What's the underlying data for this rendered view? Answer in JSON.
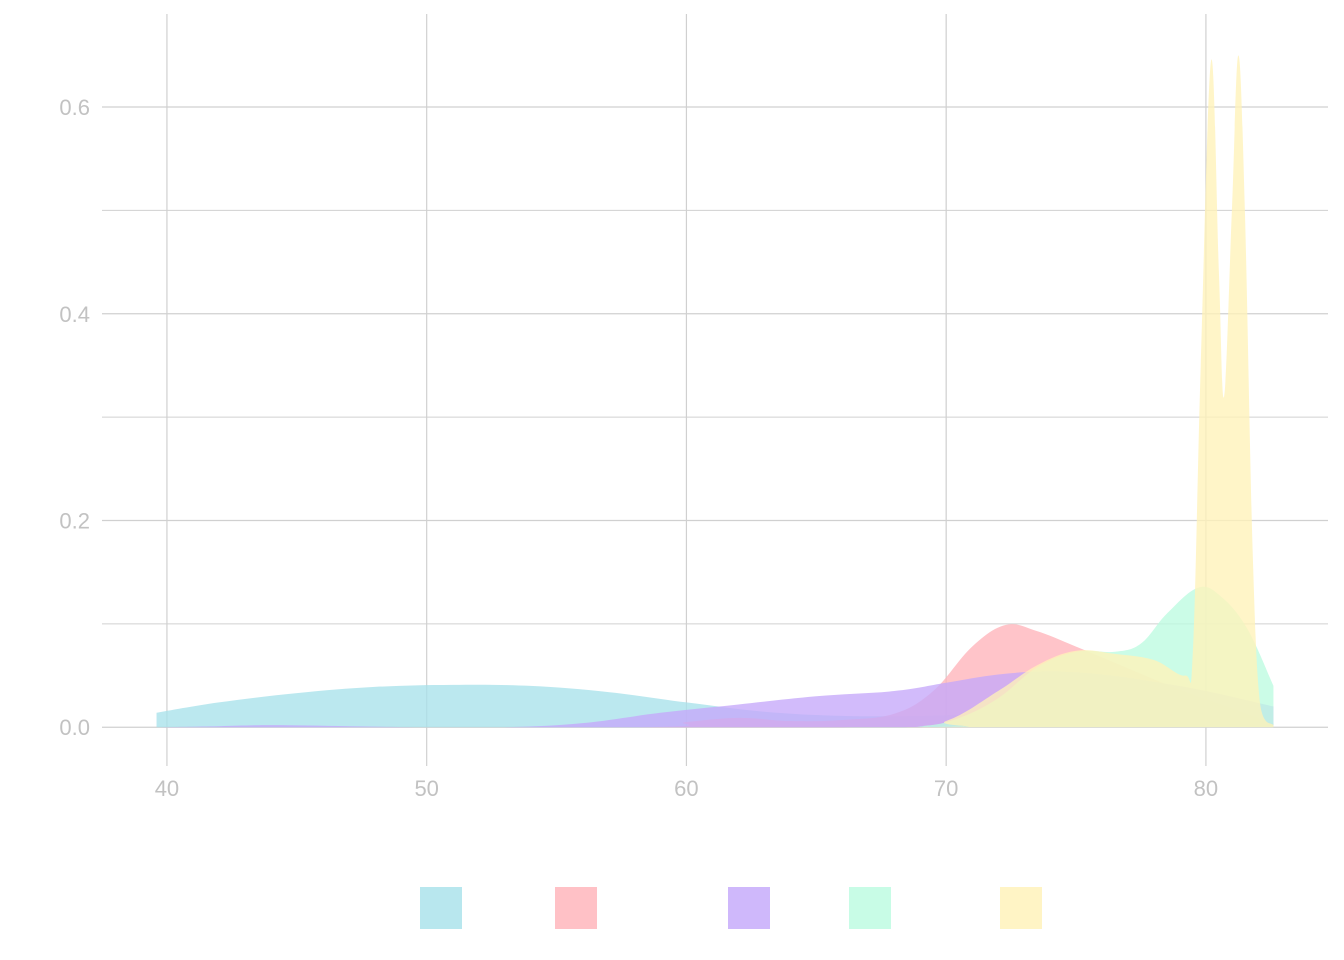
{
  "chart_data": {
    "type": "area",
    "subtype": "density",
    "title": "",
    "xlabel": "",
    "ylabel": "",
    "xlim": [
      37.5,
      84.7
    ],
    "ylim": [
      -0.0375,
      0.69
    ],
    "x_ticks": [
      40,
      50,
      60,
      70,
      80
    ],
    "x_tick_labels": [
      "40",
      "50",
      "60",
      "70",
      "80"
    ],
    "y_ticks": [
      0.0,
      0.2,
      0.4,
      0.6
    ],
    "y_tick_labels": [
      "0.0",
      "0.2",
      "0.4",
      "0.6"
    ],
    "y_minor_ticks": [
      0.1,
      0.3,
      0.5
    ],
    "grid": true,
    "legend": {
      "position": "bottom",
      "labels_visible": false
    },
    "series": [
      {
        "color": "#a8e2ea",
        "points": [
          [
            39.6,
            0.014
          ],
          [
            42,
            0.024
          ],
          [
            45,
            0.033
          ],
          [
            48,
            0.039
          ],
          [
            51,
            0.041
          ],
          [
            54,
            0.04
          ],
          [
            57,
            0.034
          ],
          [
            60,
            0.024
          ],
          [
            63,
            0.015
          ],
          [
            66,
            0.011
          ],
          [
            69,
            0.011
          ],
          [
            72,
            0.013
          ],
          [
            75,
            0.012
          ],
          [
            78,
            0.009
          ],
          [
            80,
            0.006
          ],
          [
            82,
            0.004
          ],
          [
            82.6,
            0.004
          ]
        ]
      },
      {
        "color": "#ffb3ba",
        "points": [
          [
            39.6,
            0.0
          ],
          [
            58,
            0.0
          ],
          [
            60,
            0.005
          ],
          [
            62,
            0.009
          ],
          [
            64,
            0.006
          ],
          [
            66,
            0.007
          ],
          [
            68,
            0.013
          ],
          [
            69.5,
            0.035
          ],
          [
            71,
            0.078
          ],
          [
            72.3,
            0.099
          ],
          [
            73.5,
            0.093
          ],
          [
            75,
            0.078
          ],
          [
            77,
            0.057
          ],
          [
            79,
            0.036
          ],
          [
            81,
            0.018
          ],
          [
            82.6,
            0.003
          ]
        ]
      },
      {
        "color": "#c5a8fa",
        "points": [
          [
            39.6,
            0.0
          ],
          [
            42,
            0.001
          ],
          [
            44,
            0.002
          ],
          [
            47,
            0.001
          ],
          [
            50,
            0.0
          ],
          [
            53,
            0.0
          ],
          [
            56,
            0.004
          ],
          [
            59,
            0.014
          ],
          [
            62,
            0.022
          ],
          [
            65,
            0.03
          ],
          [
            68,
            0.035
          ],
          [
            70,
            0.043
          ],
          [
            72,
            0.051
          ],
          [
            74,
            0.054
          ],
          [
            76,
            0.051
          ],
          [
            78,
            0.044
          ],
          [
            80,
            0.035
          ],
          [
            82.6,
            0.02
          ]
        ]
      },
      {
        "color": "#bcfbe0",
        "points": [
          [
            39.6,
            0.0
          ],
          [
            66,
            0.0
          ],
          [
            69,
            0.001
          ],
          [
            70.5,
            0.009
          ],
          [
            72,
            0.028
          ],
          [
            73.5,
            0.058
          ],
          [
            75,
            0.073
          ],
          [
            76.5,
            0.073
          ],
          [
            77.5,
            0.081
          ],
          [
            78.5,
            0.11
          ],
          [
            79.7,
            0.135
          ],
          [
            80.6,
            0.126
          ],
          [
            81.6,
            0.095
          ],
          [
            82.6,
            0.04
          ]
        ]
      },
      {
        "color": "#fff2b8",
        "points": [
          [
            39.6,
            0.0
          ],
          [
            68,
            0.0
          ],
          [
            70,
            0.006
          ],
          [
            72,
            0.035
          ],
          [
            73.5,
            0.06
          ],
          [
            75,
            0.074
          ],
          [
            76.5,
            0.071
          ],
          [
            78,
            0.065
          ],
          [
            79.2,
            0.05
          ],
          [
            79.5,
            0.075
          ],
          [
            79.8,
            0.35
          ],
          [
            80.2,
            0.645
          ],
          [
            80.5,
            0.44
          ],
          [
            80.7,
            0.32
          ],
          [
            81,
            0.5
          ],
          [
            81.25,
            0.65
          ],
          [
            81.5,
            0.5
          ],
          [
            81.8,
            0.17
          ],
          [
            82.1,
            0.02
          ],
          [
            82.6,
            0.002
          ]
        ]
      }
    ]
  }
}
